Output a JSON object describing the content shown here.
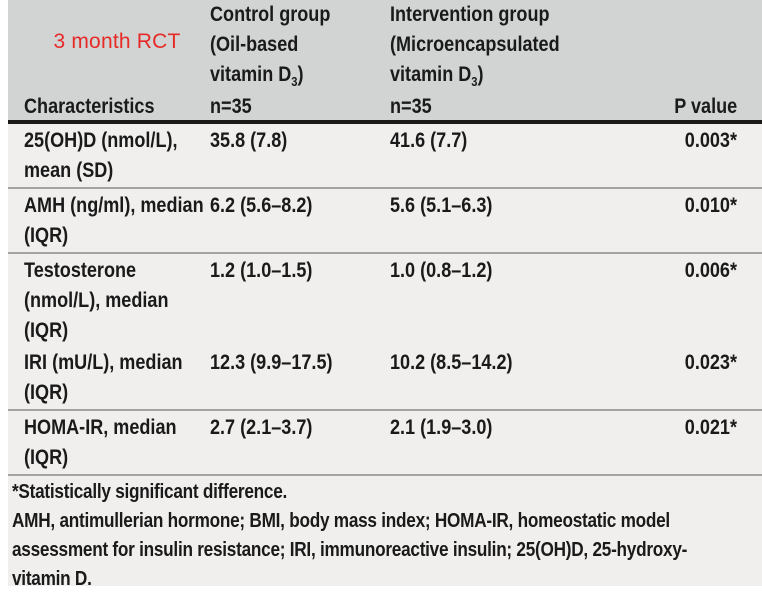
{
  "header": {
    "study_label": "3 month RCT",
    "row_header": "Characteristics",
    "groups": [
      {
        "line1": "Control group",
        "line2": "(Oil-based",
        "line3_prefix": "vitamin D",
        "line3_subscript": "3",
        "line3_suffix": ")",
        "n": "n=35"
      },
      {
        "line1": "Intervention group",
        "line2": "(Microencapsulated",
        "line3_prefix": "vitamin D",
        "line3_subscript": "3",
        "line3_suffix": ")",
        "n": "n=35"
      }
    ],
    "p_value_header": "P value"
  },
  "rows": [
    {
      "characteristic_lines": [
        "25(OH)D (nmol/L),",
        "mean (SD)"
      ],
      "control": "35.8 (7.8)",
      "intervention": "41.6 (7.7)",
      "p": "0.003*"
    },
    {
      "characteristic_lines": [
        "AMH (ng/ml), median",
        "(IQR)"
      ],
      "control": "6.2 (5.6–8.2)",
      "intervention": "5.6 (5.1–6.3)",
      "p": "0.010*"
    },
    {
      "characteristic_lines": [
        "Testosterone",
        "(nmol/L), median",
        "(IQR)"
      ],
      "control": "1.2 (1.0–1.5)",
      "intervention": "1.0 (0.8–1.2)",
      "p": "0.006*"
    },
    {
      "characteristic_lines": [
        "IRI (mU/L), median",
        "(IQR)"
      ],
      "control": "12.3 (9.9–17.5)",
      "intervention": "10.2 (8.5–14.2)",
      "p": "0.023*"
    },
    {
      "characteristic_lines": [
        "HOMA-IR, median",
        "(IQR)"
      ],
      "control": "2.7 (2.1–3.7)",
      "intervention": "2.1 (1.9–3.0)",
      "p": "0.021*"
    }
  ],
  "footnotes": {
    "significance_note": "*Statistically significant difference.",
    "abbreviation_lines": [
      "AMH, antimullerian hormone; BMI, body mass index; HOMA-IR, homeostatic model",
      "assessment for insulin resistance; IRI, immunoreactive insulin; 25(OH)D, 25-hydroxy-",
      "vitamin D."
    ]
  },
  "colors": {
    "header_background": "#d2d4d4",
    "body_background": "#f0efed",
    "study_label_red": "#e62a27",
    "thick_rule": "#1a1a1a",
    "thin_rule": "#a3a3a3"
  }
}
